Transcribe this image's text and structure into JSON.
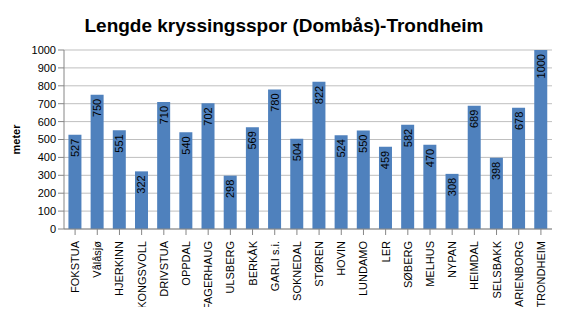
{
  "chart_data": {
    "type": "bar",
    "title": "Lengde kryssingsspor (Dombås)-Trondheim",
    "y_label": "meter",
    "categories": [
      "FOKSTUA",
      "Vålåsjø",
      "HJERKINN",
      "KONGSVOLL",
      "DRIVSTUA",
      "OPPDAL",
      "FAGERHAUG",
      "ULSBERG",
      "BERKÅK",
      "GARLI s.i.",
      "SOKNEDAL",
      "STØREN",
      "HOVIN",
      "LUNDAMO",
      "LER",
      "SØBERG",
      "MELHUS",
      "NYPAN",
      "HEIMDAL",
      "SELSBAKK",
      "MARIENBORG",
      "TRONDHEIM"
    ],
    "values": [
      527,
      750,
      551,
      322,
      710,
      540,
      702,
      298,
      569,
      780,
      504,
      822,
      524,
      550,
      459,
      582,
      470,
      308,
      689,
      398,
      678,
      1000
    ],
    "color": "#4f81bd",
    "ylim": [
      0,
      1000
    ],
    "yticks": [
      0,
      100,
      200,
      300,
      400,
      500,
      600,
      700,
      800,
      900,
      1000
    ],
    "grid": true,
    "data_labels": true
  }
}
